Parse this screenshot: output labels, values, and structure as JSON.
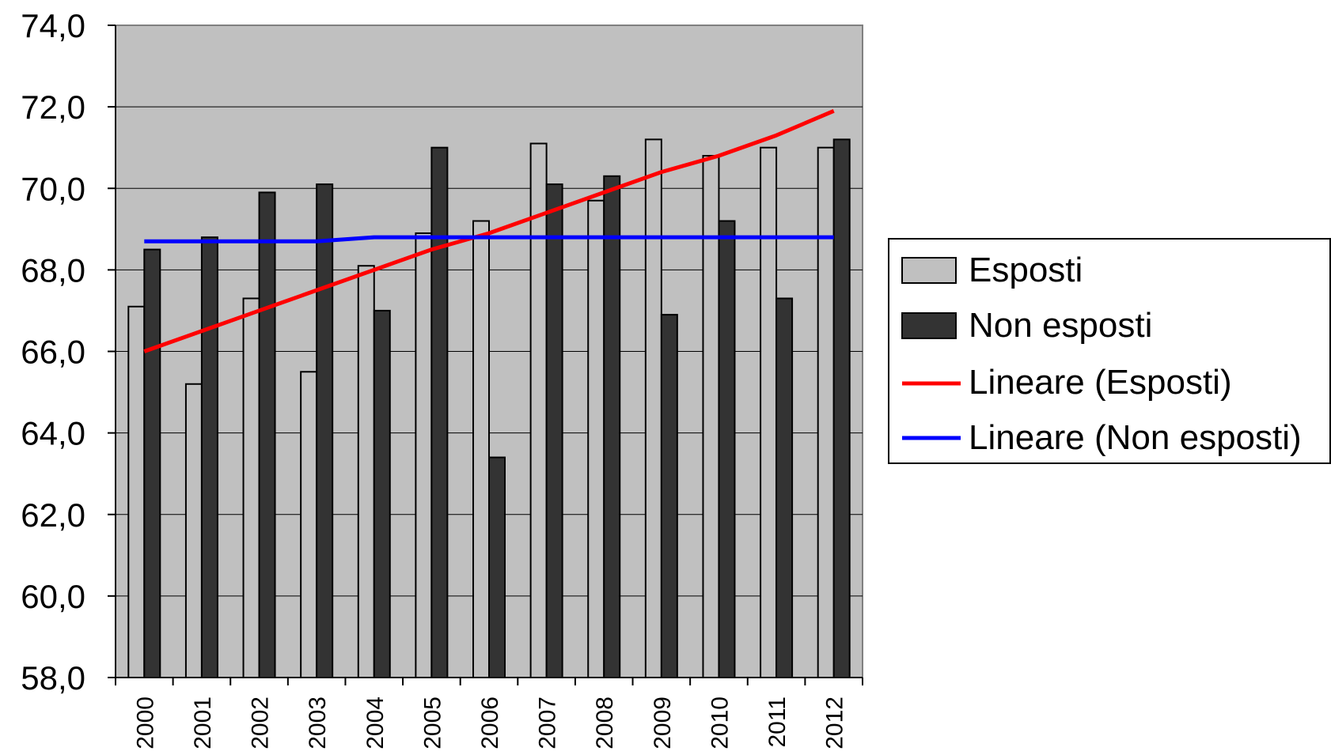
{
  "chart_data": {
    "type": "bar",
    "categories": [
      "2000",
      "2001",
      "2002",
      "2003",
      "2004",
      "2005",
      "2006",
      "2007",
      "2008",
      "2009",
      "2010",
      "2011",
      "2012"
    ],
    "series": [
      {
        "name": "Esposti",
        "kind": "bar",
        "color": "#c0c0c0",
        "values": [
          67.1,
          65.2,
          67.3,
          65.5,
          68.1,
          68.9,
          69.2,
          71.1,
          69.7,
          71.2,
          70.8,
          71.0,
          71.0
        ]
      },
      {
        "name": "Non esposti",
        "kind": "bar",
        "color": "#333333",
        "values": [
          68.5,
          68.8,
          69.9,
          70.1,
          67.0,
          71.0,
          63.4,
          70.1,
          70.3,
          66.9,
          69.2,
          67.3,
          71.2
        ]
      },
      {
        "name": "Lineare (Esposti)",
        "kind": "trendline",
        "color": "#ff0000",
        "values": [
          66.0,
          66.5,
          67.0,
          67.5,
          68.0,
          68.5,
          68.9,
          69.4,
          69.9,
          70.4,
          70.8,
          71.3,
          71.9
        ]
      },
      {
        "name": "Lineare (Non esposti)",
        "kind": "trendline",
        "color": "#0000ff",
        "values": [
          68.7,
          68.7,
          68.7,
          68.7,
          68.8,
          68.8,
          68.8,
          68.8,
          68.8,
          68.8,
          68.8,
          68.8,
          68.8
        ]
      }
    ],
    "yticks": [
      "74,0",
      "72,0",
      "70,0",
      "68,0",
      "66,0",
      "64,0",
      "62,0",
      "60,0",
      "58,0"
    ],
    "ylim": [
      58,
      74
    ],
    "grid": true,
    "plot_background": "#c0c0c0",
    "legend_position": "right"
  }
}
